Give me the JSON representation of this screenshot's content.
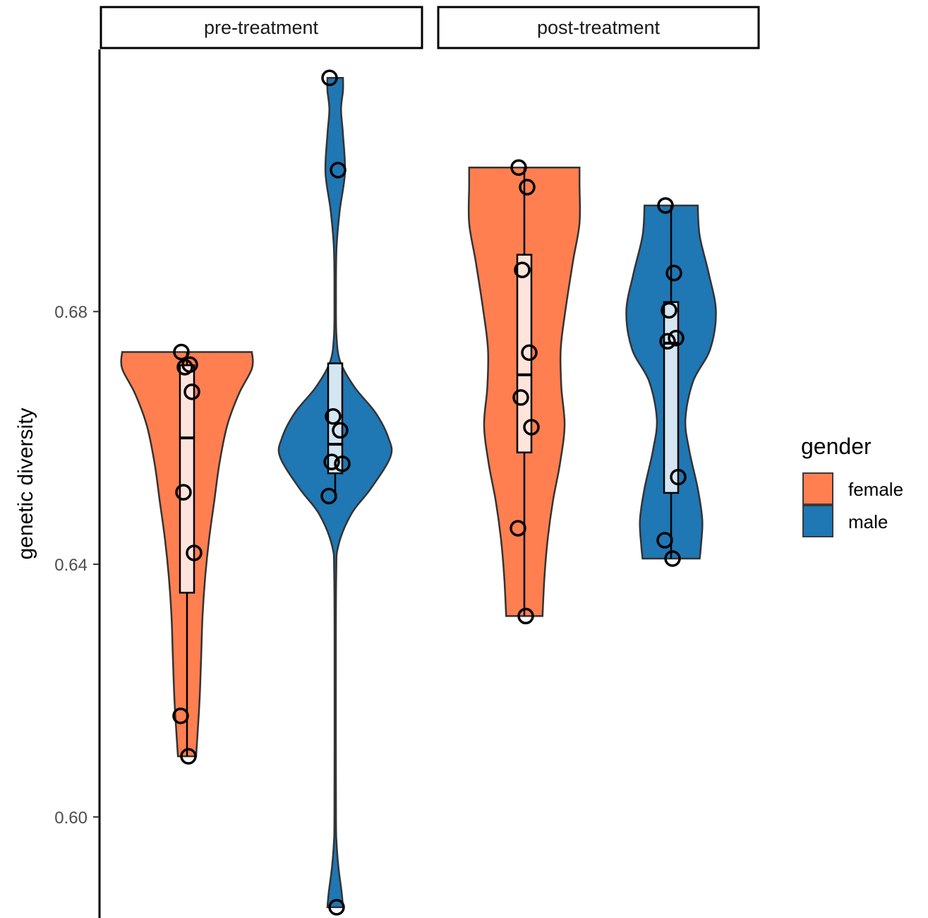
{
  "chart_data": {
    "type": "violin",
    "ylabel": "genetic diversity",
    "xlabel": "",
    "y_ticks": [
      "0.60",
      "0.64",
      "0.68"
    ],
    "y_tick_values": [
      0.6,
      0.64,
      0.68
    ],
    "ylim": [
      0.584,
      0.7215
    ],
    "facets": [
      "pre-treatment",
      "post-treatment"
    ],
    "legend": {
      "title": "gender",
      "position": "right",
      "entries": [
        {
          "label": "female",
          "color": "#FF7F50"
        },
        {
          "label": "male",
          "color": "#1F77B4"
        }
      ]
    },
    "grid": false,
    "groups": [
      {
        "facet": "pre-treatment",
        "gender": "female",
        "points": [
          0.6736,
          0.6716,
          0.6712,
          0.6673,
          0.6514,
          0.6418,
          0.616,
          0.6096
        ],
        "box": {
          "q1": 0.6355,
          "median": 0.66,
          "q3": 0.6715,
          "whisker_low": 0.6096,
          "whisker_high": 0.6736
        },
        "density": [
          [
            0.6096,
            0.14
          ],
          [
            0.616,
            0.18
          ],
          [
            0.62,
            0.2
          ],
          [
            0.626,
            0.22
          ],
          [
            0.632,
            0.24
          ],
          [
            0.638,
            0.28
          ],
          [
            0.644,
            0.34
          ],
          [
            0.65,
            0.42
          ],
          [
            0.656,
            0.5
          ],
          [
            0.662,
            0.62
          ],
          [
            0.667,
            0.8
          ],
          [
            0.671,
            1.0
          ],
          [
            0.6736,
            1.0
          ]
        ]
      },
      {
        "facet": "pre-treatment",
        "gender": "male",
        "points": [
          0.717,
          0.7024,
          0.6634,
          0.6612,
          0.6562,
          0.6559,
          0.6508,
          0.5857
        ],
        "box": {
          "q1": 0.6544,
          "median": 0.659,
          "q3": 0.6718,
          "whisker_low": 0.6508,
          "whisker_high": 0.6718
        },
        "density": [
          [
            0.5857,
            0.12
          ],
          [
            0.588,
            0.1
          ],
          [
            0.592,
            0.05
          ],
          [
            0.596,
            0.02
          ],
          [
            0.6,
            0.012
          ],
          [
            0.62,
            0.01
          ],
          [
            0.638,
            0.015
          ],
          [
            0.643,
            0.05
          ],
          [
            0.648,
            0.25
          ],
          [
            0.652,
            0.55
          ],
          [
            0.657,
            0.85
          ],
          [
            0.66,
            0.82
          ],
          [
            0.664,
            0.62
          ],
          [
            0.668,
            0.3
          ],
          [
            0.672,
            0.08
          ],
          [
            0.676,
            0.02
          ],
          [
            0.682,
            0.012
          ],
          [
            0.69,
            0.02
          ],
          [
            0.696,
            0.07
          ],
          [
            0.702,
            0.15
          ],
          [
            0.708,
            0.12
          ],
          [
            0.712,
            0.09
          ],
          [
            0.715,
            0.12
          ],
          [
            0.717,
            0.12
          ]
        ]
      },
      {
        "facet": "post-treatment",
        "gender": "female",
        "points": [
          0.7028,
          0.6997,
          0.6866,
          0.6735,
          0.6664,
          0.6617,
          0.6457,
          0.6318
        ],
        "box": {
          "q1": 0.6577,
          "median": 0.67,
          "q3": 0.689,
          "whisker_low": 0.6318,
          "whisker_high": 0.7028
        },
        "density": [
          [
            0.6318,
            0.28
          ],
          [
            0.638,
            0.31
          ],
          [
            0.644,
            0.36
          ],
          [
            0.65,
            0.44
          ],
          [
            0.656,
            0.55
          ],
          [
            0.662,
            0.62
          ],
          [
            0.668,
            0.57
          ],
          [
            0.674,
            0.56
          ],
          [
            0.68,
            0.63
          ],
          [
            0.688,
            0.75
          ],
          [
            0.694,
            0.85
          ],
          [
            0.7,
            0.85
          ],
          [
            0.7028,
            0.85
          ]
        ]
      },
      {
        "facet": "post-treatment",
        "gender": "male",
        "points": [
          0.6968,
          0.6861,
          0.6802,
          0.6758,
          0.6753,
          0.6538,
          0.6438,
          0.6409
        ],
        "box": {
          "q1": 0.6513,
          "median": 0.675,
          "q3": 0.6815,
          "whisker_low": 0.6409,
          "whisker_high": 0.6968
        },
        "density": [
          [
            0.6409,
            0.44
          ],
          [
            0.643,
            0.46
          ],
          [
            0.647,
            0.48
          ],
          [
            0.652,
            0.41
          ],
          [
            0.658,
            0.28
          ],
          [
            0.663,
            0.22
          ],
          [
            0.669,
            0.34
          ],
          [
            0.674,
            0.6
          ],
          [
            0.68,
            0.69
          ],
          [
            0.686,
            0.58
          ],
          [
            0.692,
            0.44
          ],
          [
            0.6968,
            0.41
          ]
        ]
      }
    ]
  }
}
